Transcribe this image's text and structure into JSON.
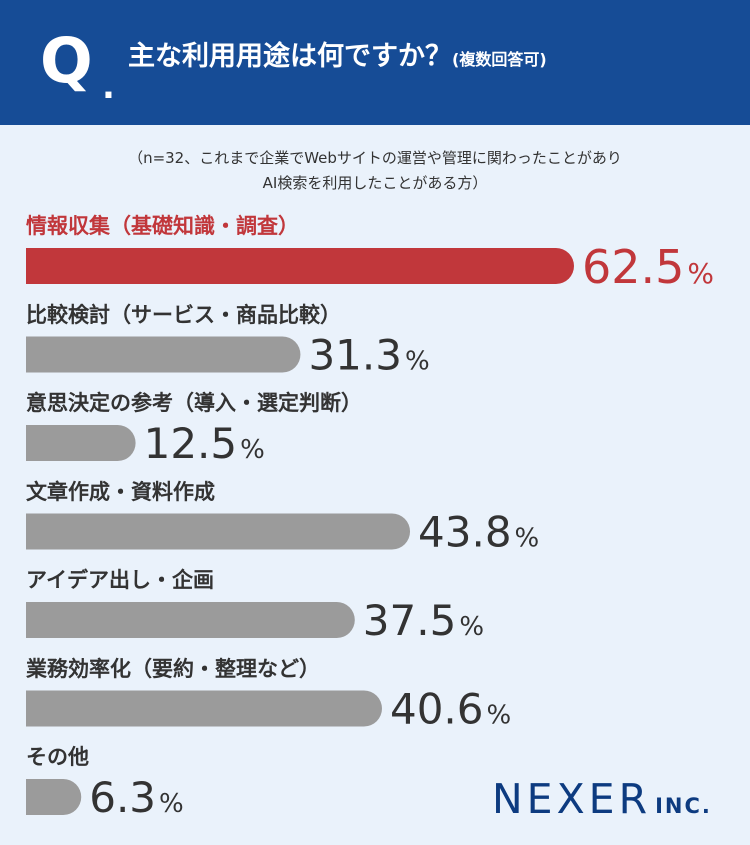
{
  "header": {
    "q_mark": "Q",
    "q_dot": ".",
    "question": "主な利用用途は何ですか？",
    "question_note": "(複数回答可)"
  },
  "sample_note": {
    "line1": "（n=32、これまで企業でWebサイトの運営や管理に関わったことがあり",
    "line2": "AI検索を利用したことがある方）"
  },
  "colors": {
    "header_bg": "#164c96",
    "highlight": "#c1373b",
    "bar": "#9b9b9b",
    "text": "#333333",
    "brand": "#0d3b80"
  },
  "chart_data": {
    "type": "bar",
    "orientation": "horizontal",
    "categories": [
      "情報収集（基礎知識・調査）",
      "比較検討（サービス・商品比較）",
      "意思決定の参考（導入・選定判断）",
      "文章作成・資料作成",
      "アイデア出し・企画",
      "業務効率化（要約・整理など）",
      "その他"
    ],
    "values": [
      62.5,
      31.3,
      12.5,
      43.8,
      37.5,
      40.6,
      6.3
    ],
    "value_labels": [
      "62.5",
      "31.3",
      "12.5",
      "43.8",
      "37.5",
      "40.6",
      "6.3"
    ],
    "unit": "%",
    "highlight_index": 0,
    "xlim": [
      0,
      62.5
    ]
  },
  "brand": {
    "name": "NEXER",
    "suffix": "INC."
  }
}
